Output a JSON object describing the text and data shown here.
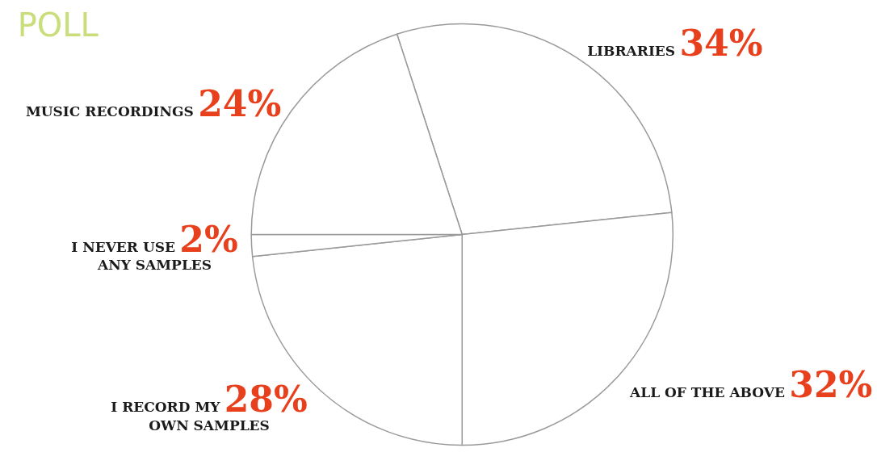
{
  "chart_data": {
    "type": "pie",
    "title": "POLL",
    "categories": [
      "LIBRARIES",
      "ALL OF THE ABOVE",
      "I RECORD MY\nOWN SAMPLES",
      "I NEVER USE\nANY SAMPLES",
      "MUSIC RECORDINGS"
    ],
    "values": [
      34,
      32,
      28,
      2,
      24
    ],
    "value_labels": [
      "34%",
      "32%",
      "28%",
      "2%",
      "24%"
    ],
    "colors": [
      "#ffffff",
      "#ffffff",
      "#ffffff",
      "#ffffff",
      "#ffffff"
    ],
    "legend": false
  }
}
